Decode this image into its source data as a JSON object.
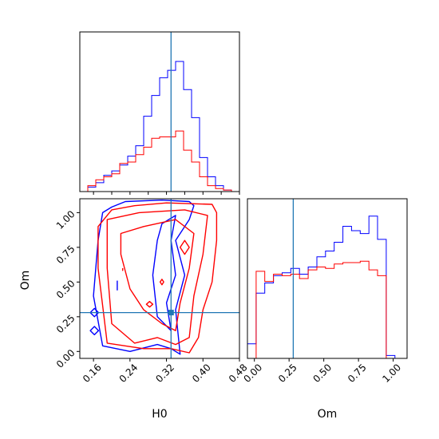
{
  "chart_data": {
    "type": "corner",
    "parameters": [
      "H0",
      "Om"
    ],
    "truth": {
      "H0": 0.33,
      "Om": 0.28
    },
    "colors": {
      "blue": "#0000ff",
      "red": "#ff0000",
      "truth": "#1f77b4"
    },
    "grid": false,
    "panels": [
      {
        "name": "H0-marginal",
        "type": "histogram",
        "xlim": [
          0.13,
          0.48
        ],
        "ylim": [
          0,
          1.08
        ],
        "tick_values": [
          0.16,
          0.2,
          0.24,
          0.28,
          0.32,
          0.36,
          0.4,
          0.44,
          0.48
        ],
        "bin_edges": [
          0.13,
          0.1475,
          0.165,
          0.1825,
          0.2,
          0.2175,
          0.235,
          0.2525,
          0.27,
          0.2875,
          0.305,
          0.3225,
          0.34,
          0.3575,
          0.375,
          0.3925,
          0.41,
          0.4275,
          0.445,
          0.4625,
          0.48
        ],
        "series": [
          {
            "color": "blue",
            "counts": [
              0.0,
              0.03,
              0.06,
              0.11,
              0.14,
              0.18,
              0.24,
              0.31,
              0.51,
              0.65,
              0.77,
              0.82,
              0.88,
              0.69,
              0.5,
              0.23,
              0.1,
              0.04,
              0.01,
              0.0
            ]
          },
          {
            "color": "red",
            "counts": [
              0.0,
              0.04,
              0.08,
              0.1,
              0.12,
              0.19,
              0.2,
              0.25,
              0.3,
              0.36,
              0.37,
              0.37,
              0.41,
              0.28,
              0.2,
              0.1,
              0.04,
              0.02,
              0.01,
              0.0
            ]
          }
        ]
      },
      {
        "name": "H0-Om-contour",
        "type": "contour",
        "xlim": [
          0.13,
          0.48
        ],
        "ylim": [
          -0.05,
          1.1
        ],
        "x_tick_labels": [
          "0.16",
          "0.24",
          "0.32",
          "0.40",
          "0.48"
        ],
        "x_tick_values": [
          0.16,
          0.24,
          0.32,
          0.4,
          0.48
        ],
        "y_tick_labels": [
          "0.00",
          "0.25",
          "0.50",
          "0.75",
          "1.00"
        ],
        "y_tick_values": [
          0.0,
          0.25,
          0.5,
          0.75,
          1.0
        ],
        "xlabel": "H0",
        "ylabel": "Om",
        "series": [
          {
            "color": "blue",
            "contours": [
              [
                [
                  0.2,
                  1.04
                ],
                [
                  0.23,
                  1.08
                ],
                [
                  0.31,
                  1.09
                ],
                [
                  0.37,
                  1.08
                ],
                [
                  0.38,
                  1.05
                ],
                [
                  0.37,
                  0.95
                ],
                [
                  0.34,
                  0.8
                ],
                [
                  0.36,
                  0.55
                ],
                [
                  0.34,
                  0.3
                ],
                [
                  0.35,
                  -0.02
                ],
                [
                  0.33,
                  0.02
                ],
                [
                  0.3,
                  0.05
                ],
                [
                  0.24,
                  0.0
                ],
                [
                  0.18,
                  0.04
                ],
                [
                  0.16,
                  0.4
                ],
                [
                  0.17,
                  0.8
                ],
                [
                  0.18,
                  1.0
                ]
              ],
              [
                [
                  0.31,
                  0.92
                ],
                [
                  0.34,
                  0.98
                ],
                [
                  0.33,
                  0.8
                ],
                [
                  0.34,
                  0.55
                ],
                [
                  0.32,
                  0.35
                ],
                [
                  0.33,
                  0.15
                ],
                [
                  0.3,
                  0.25
                ],
                [
                  0.29,
                  0.55
                ],
                [
                  0.3,
                  0.8
                ]
              ],
              [
                [
                  0.153,
                  0.28
                ],
                [
                  0.162,
                  0.25
                ],
                [
                  0.171,
                  0.28
                ],
                [
                  0.162,
                  0.31
                ]
              ],
              [
                [
                  0.153,
                  0.15
                ],
                [
                  0.162,
                  0.12
                ],
                [
                  0.171,
                  0.15
                ],
                [
                  0.162,
                  0.18
                ]
              ],
              [
                [
                  0.212,
                  0.44
                ],
                [
                  0.212,
                  0.51
                ]
              ]
            ]
          },
          {
            "color": "red",
            "contours": [
              [
                [
                  0.2,
                  1.02
                ],
                [
                  0.25,
                  1.05
                ],
                [
                  0.32,
                  1.07
                ],
                [
                  0.42,
                  1.06
                ],
                [
                  0.43,
                  1.0
                ],
                [
                  0.43,
                  0.8
                ],
                [
                  0.42,
                  0.5
                ],
                [
                  0.4,
                  0.3
                ],
                [
                  0.39,
                  0.1
                ],
                [
                  0.37,
                  -0.01
                ],
                [
                  0.33,
                  0.02
                ],
                [
                  0.27,
                  0.02
                ],
                [
                  0.19,
                  0.06
                ],
                [
                  0.17,
                  0.6
                ],
                [
                  0.17,
                  0.9
                ]
              ],
              [
                [
                  0.19,
                  0.95
                ],
                [
                  0.26,
                  1.0
                ],
                [
                  0.36,
                  1.02
                ],
                [
                  0.41,
                  0.98
                ],
                [
                  0.4,
                  0.7
                ],
                [
                  0.38,
                  0.4
                ],
                [
                  0.37,
                  0.1
                ],
                [
                  0.34,
                  0.05
                ],
                [
                  0.3,
                  0.1
                ],
                [
                  0.25,
                  0.06
                ],
                [
                  0.2,
                  0.2
                ],
                [
                  0.19,
                  0.6
                ]
              ],
              [
                [
                  0.22,
                  0.85
                ],
                [
                  0.27,
                  0.9
                ],
                [
                  0.34,
                  0.95
                ],
                [
                  0.38,
                  0.85
                ],
                [
                  0.37,
                  0.6
                ],
                [
                  0.35,
                  0.35
                ],
                [
                  0.34,
                  0.15
                ],
                [
                  0.31,
                  0.2
                ],
                [
                  0.27,
                  0.3
                ],
                [
                  0.24,
                  0.45
                ],
                [
                  0.22,
                  0.7
                ]
              ],
              [
                [
                  0.36,
                  0.8
                ],
                [
                  0.37,
                  0.75
                ],
                [
                  0.36,
                  0.7
                ],
                [
                  0.35,
                  0.75
                ]
              ],
              [
                [
                  0.283,
                  0.36
                ],
                [
                  0.29,
                  0.34
                ],
                [
                  0.283,
                  0.32
                ],
                [
                  0.276,
                  0.34
                ]
              ],
              [
                [
                  0.224,
                  0.58
                ],
                [
                  0.224,
                  0.6
                ]
              ],
              [
                [
                  0.31,
                  0.48
                ],
                [
                  0.314,
                  0.5
                ],
                [
                  0.31,
                  0.52
                ],
                [
                  0.306,
                  0.5
                ]
              ]
            ]
          }
        ]
      },
      {
        "name": "Om-marginal",
        "type": "histogram",
        "xlim": [
          -0.05,
          1.1
        ],
        "ylim": [
          0,
          1.1
        ],
        "tick_labels": [
          "0.00",
          "0.25",
          "0.50",
          "0.75",
          "1.00"
        ],
        "tick_values": [
          0.0,
          0.25,
          0.5,
          0.75,
          1.0
        ],
        "xlabel": "Om",
        "bin_edges": [
          -0.05,
          0.0125,
          0.075,
          0.1375,
          0.2,
          0.2625,
          0.325,
          0.3875,
          0.45,
          0.5125,
          0.575,
          0.6375,
          0.7,
          0.7625,
          0.825,
          0.8875,
          0.95,
          1.0125,
          1.075
        ],
        "series": [
          {
            "color": "blue",
            "counts": [
              0.1,
              0.45,
              0.52,
              0.57,
              0.59,
              0.62,
              0.58,
              0.63,
              0.7,
              0.74,
              0.8,
              0.91,
              0.88,
              0.86,
              0.98,
              0.82,
              0.02,
              0.0
            ]
          },
          {
            "color": "red",
            "counts": [
              0.0,
              0.6,
              0.53,
              0.58,
              0.57,
              0.58,
              0.55,
              0.61,
              0.63,
              0.62,
              0.65,
              0.66,
              0.66,
              0.67,
              0.61,
              0.57,
              0.0,
              0.0
            ]
          }
        ]
      }
    ]
  }
}
